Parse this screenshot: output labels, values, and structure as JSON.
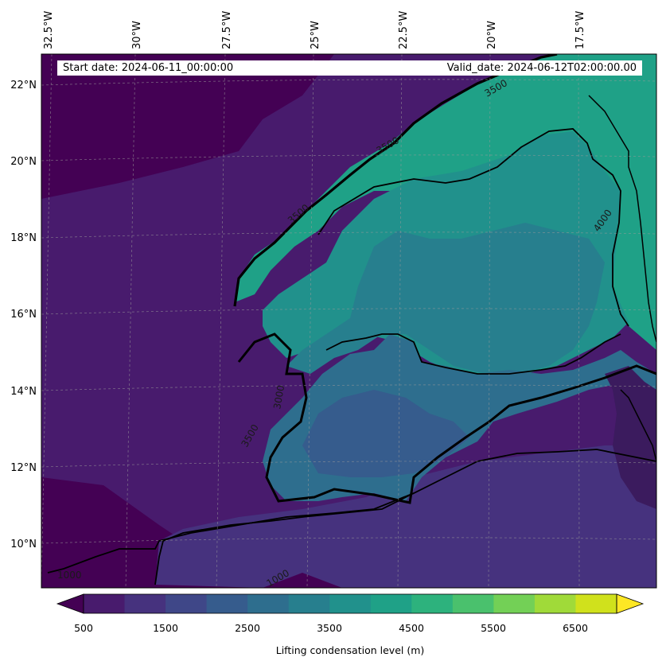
{
  "map": {
    "lon_labels": [
      "32.5°W",
      "30°W",
      "27.5°W",
      "25°W",
      "22.5°W",
      "20°W",
      "17.5°W"
    ],
    "lat_labels": [
      "22°N",
      "20°N",
      "18°N",
      "16°N",
      "14°N",
      "12°N",
      "10°N"
    ],
    "start_date": "Start date: 2024-06-11_00:00:00",
    "valid_date": "Valid_date: 2024-06-12T02:00:00.00",
    "contour_labels": [
      "1000",
      "1000",
      "4000",
      "3500",
      "3500",
      "3500",
      "3500",
      "3000"
    ]
  },
  "colorbar": {
    "label": "Lifting condensation level (m)",
    "ticks": [
      "500",
      "1500",
      "2500",
      "3500",
      "4500",
      "5500",
      "6500"
    ],
    "colors": [
      "#440154",
      "#481b6d",
      "#46327e",
      "#3f4788",
      "#365c8d",
      "#2e6e8e",
      "#277f8e",
      "#21918c",
      "#1fa187",
      "#2db27d",
      "#4ac16d",
      "#73d056",
      "#a0da39",
      "#d0e11c",
      "#fde725"
    ]
  },
  "colors": {
    "c500": "#440154",
    "c1000": "#481b6d",
    "c1500": "#46327e",
    "c2500": "#365c8d",
    "c3000": "#2e6e8e",
    "c3500": "#277f8e",
    "c4000": "#21918c",
    "c4500": "#1fa187",
    "land": "#3b1b5e"
  }
}
